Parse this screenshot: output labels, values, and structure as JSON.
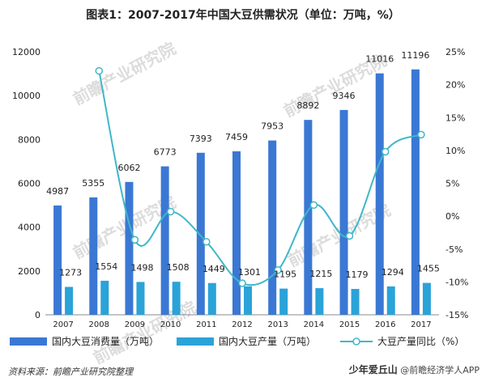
{
  "title": "图表1：2007-2017年中国大豆供需状况（单位：万吨，%）",
  "source": {
    "label": "资料来源：",
    "value": "前瞻产业研究院整理"
  },
  "watermark": "前瞻产业研究院",
  "wechat": {
    "name": "少年爱丘山",
    "publisher": "@前瞻经济学人APP"
  },
  "chart_data": {
    "type": "bar",
    "categories": [
      "2007",
      "2008",
      "2009",
      "2010",
      "2011",
      "2012",
      "2013",
      "2014",
      "2015",
      "2016",
      "2017"
    ],
    "series": [
      {
        "name": "国内大豆消费量（万吨）",
        "type": "bar",
        "axis": "left",
        "color": "#3a78d4",
        "values": [
          4987,
          5355,
          6062,
          6773,
          7393,
          7459,
          7953,
          8892,
          9346,
          11016,
          11196
        ]
      },
      {
        "name": "国内大豆产量（万吨）",
        "type": "bar",
        "axis": "left",
        "color": "#2aa3d8",
        "values": [
          1273,
          1554,
          1498,
          1508,
          1449,
          1301,
          1195,
          1215,
          1179,
          1294,
          1455
        ]
      },
      {
        "name": "大豆产量同比（%）",
        "type": "line",
        "axis": "right",
        "color": "#3fb7c8",
        "values": [
          null,
          22.1,
          -3.6,
          0.7,
          -3.9,
          -10.2,
          -8.2,
          1.7,
          -3.0,
          9.8,
          12.4
        ]
      }
    ],
    "y_left": {
      "min": 0,
      "max": 12000,
      "ticks": [
        0,
        2000,
        4000,
        6000,
        8000,
        10000,
        12000
      ]
    },
    "y_right": {
      "min": -15,
      "max": 25,
      "ticks": [
        -15,
        -10,
        -5,
        0,
        5,
        10,
        15,
        20,
        25
      ],
      "tick_labels": [
        "-15%",
        "-10%",
        "-5%",
        "0%",
        "5%",
        "10%",
        "15%",
        "20%",
        "25%"
      ]
    },
    "legend_position": "bottom",
    "grid": false
  }
}
